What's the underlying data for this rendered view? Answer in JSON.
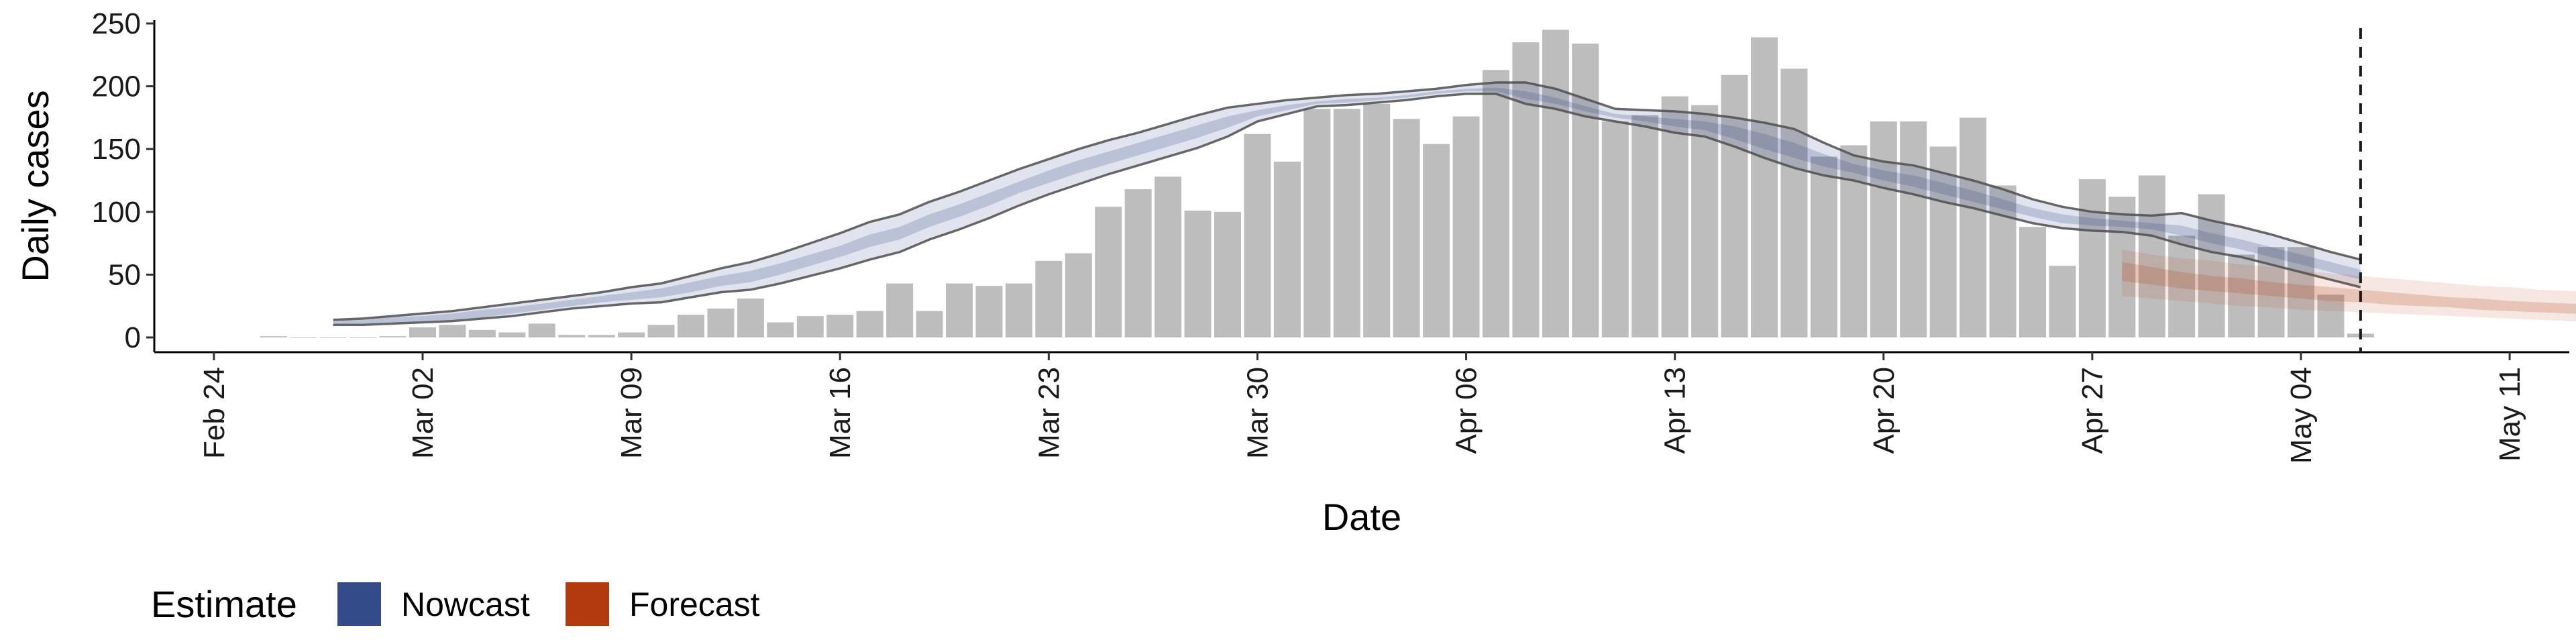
{
  "chart_data": {
    "type": "bar",
    "xlabel": "Date",
    "ylabel": "Daily cases",
    "ylim": [
      0,
      250
    ],
    "y_ticks": [
      "0",
      "50",
      "100",
      "150",
      "200",
      "250"
    ],
    "x_range": [
      "2020-02-22",
      "2020-05-13"
    ],
    "x_ticks": [
      {
        "date": "2020-02-24",
        "label": "Feb 24"
      },
      {
        "date": "2020-03-02",
        "label": "Mar 02"
      },
      {
        "date": "2020-03-09",
        "label": "Mar 09"
      },
      {
        "date": "2020-03-16",
        "label": "Mar 16"
      },
      {
        "date": "2020-03-23",
        "label": "Mar 23"
      },
      {
        "date": "2020-03-30",
        "label": "Mar 30"
      },
      {
        "date": "2020-04-06",
        "label": "Apr 06"
      },
      {
        "date": "2020-04-13",
        "label": "Apr 13"
      },
      {
        "date": "2020-04-20",
        "label": "Apr 20"
      },
      {
        "date": "2020-04-27",
        "label": "Apr 27"
      },
      {
        "date": "2020-05-04",
        "label": "May 04"
      },
      {
        "date": "2020-05-11",
        "label": "May 11"
      }
    ],
    "cases": {
      "start_date": "2020-02-26",
      "values": [
        1,
        0,
        0,
        0,
        1,
        8,
        10,
        6,
        4,
        11,
        2,
        2,
        4,
        10,
        18,
        23,
        31,
        12,
        17,
        18,
        21,
        43,
        21,
        43,
        41,
        43,
        61,
        67,
        104,
        118,
        128,
        101,
        100,
        162,
        140,
        182,
        182,
        186,
        174,
        154,
        176,
        213,
        235,
        245,
        234,
        172,
        177,
        192,
        185,
        209,
        239,
        214,
        144,
        153,
        172,
        172,
        152,
        175,
        121,
        88,
        57,
        126,
        112,
        129,
        81,
        114,
        66,
        72,
        72,
        34,
        3
      ]
    },
    "nowcast": {
      "start_date": "2020-02-28",
      "upper": [
        14,
        15,
        17,
        19,
        21,
        24,
        27,
        30,
        33,
        36,
        40,
        43,
        49,
        55,
        60,
        67,
        75,
        83,
        92,
        98,
        108,
        116,
        125,
        134,
        142,
        150,
        157,
        163,
        170,
        177,
        183,
        186,
        189,
        191,
        193,
        194,
        196,
        198,
        201,
        203,
        203,
        198,
        190,
        182,
        181,
        180,
        178,
        175,
        171,
        166,
        155,
        145,
        140,
        137,
        131,
        125,
        118,
        110,
        104,
        100,
        98,
        97,
        99,
        93,
        88,
        82,
        75,
        68,
        62
      ],
      "lower": [
        10,
        10,
        11,
        12,
        13,
        15,
        17,
        20,
        23,
        25,
        27,
        28,
        32,
        36,
        38,
        43,
        49,
        55,
        62,
        68,
        78,
        86,
        95,
        105,
        114,
        122,
        130,
        137,
        144,
        151,
        160,
        172,
        178,
        184,
        185,
        187,
        189,
        192,
        194,
        194,
        186,
        182,
        176,
        172,
        168,
        163,
        160,
        152,
        143,
        135,
        129,
        125,
        119,
        114,
        108,
        103,
        97,
        91,
        87,
        85,
        84,
        81,
        74,
        68,
        64,
        58,
        52,
        46,
        40
      ],
      "inner_upper": [
        13,
        14,
        16,
        17,
        19,
        22,
        24,
        27,
        30,
        33,
        36,
        39,
        44,
        49,
        53,
        59,
        66,
        73,
        82,
        88,
        98,
        106,
        115,
        124,
        133,
        141,
        148,
        155,
        162,
        169,
        176,
        181,
        185,
        188,
        190,
        191,
        193,
        196,
        198,
        199,
        196,
        191,
        184,
        178,
        176,
        174,
        172,
        168,
        162,
        155,
        146,
        138,
        133,
        129,
        123,
        117,
        110,
        103,
        98,
        95,
        93,
        91,
        89,
        83,
        78,
        72,
        66,
        60,
        54
      ],
      "inner_lower": [
        11,
        11,
        12,
        13,
        14,
        16,
        19,
        22,
        25,
        28,
        30,
        32,
        36,
        41,
        44,
        50,
        57,
        64,
        72,
        78,
        88,
        96,
        105,
        115,
        123,
        131,
        138,
        145,
        152,
        159,
        167,
        176,
        181,
        186,
        187,
        189,
        191,
        194,
        196,
        196,
        190,
        186,
        180,
        175,
        172,
        168,
        165,
        158,
        150,
        143,
        136,
        131,
        125,
        120,
        114,
        108,
        102,
        96,
        91,
        89,
        88,
        86,
        81,
        75,
        70,
        64,
        58,
        52,
        46
      ]
    },
    "forecast": {
      "start_date": "2020-04-28",
      "upper": [
        70,
        66,
        63,
        61,
        58,
        56,
        53,
        51,
        49,
        47,
        45,
        43,
        41,
        40,
        38,
        37,
        36,
        35,
        34,
        33,
        32,
        31,
        30,
        29,
        28,
        27,
        26,
        25,
        25,
        24,
        23,
        22
      ],
      "lower": [
        33,
        31,
        29,
        27,
        25,
        24,
        22,
        21,
        20,
        19,
        18,
        17,
        16,
        15,
        14,
        13,
        12,
        12,
        11,
        10,
        10,
        9,
        9,
        8,
        8,
        7,
        7,
        6,
        6,
        5,
        5,
        4
      ],
      "inner_upper": [
        60,
        56,
        52,
        49,
        47,
        44,
        42,
        40,
        38,
        36,
        34,
        32,
        31,
        29,
        28,
        27,
        26,
        25,
        24,
        23,
        22,
        21,
        20,
        19,
        19,
        18,
        17,
        16,
        16,
        15,
        15,
        14
      ],
      "inner_lower": [
        45,
        42,
        39,
        37,
        35,
        33,
        31,
        29,
        28,
        26,
        25,
        24,
        22,
        21,
        20,
        19,
        18,
        17,
        16,
        15,
        15,
        14,
        13,
        13,
        12,
        11,
        11,
        10,
        10,
        9,
        9,
        8
      ]
    },
    "vline_date": "2020-05-06",
    "legend": {
      "title": "Estimate",
      "position": "bottom-left",
      "items": [
        {
          "label": "Nowcast",
          "color": "#344B8A"
        },
        {
          "label": "Forecast",
          "color": "#B33A0D"
        }
      ]
    },
    "colors": {
      "bar": "#BDBDBD",
      "nowcast": "#344B8A",
      "forecast": "#B33A0D",
      "outline": "#4D4D4D",
      "vline": "#1A1A1A"
    }
  }
}
